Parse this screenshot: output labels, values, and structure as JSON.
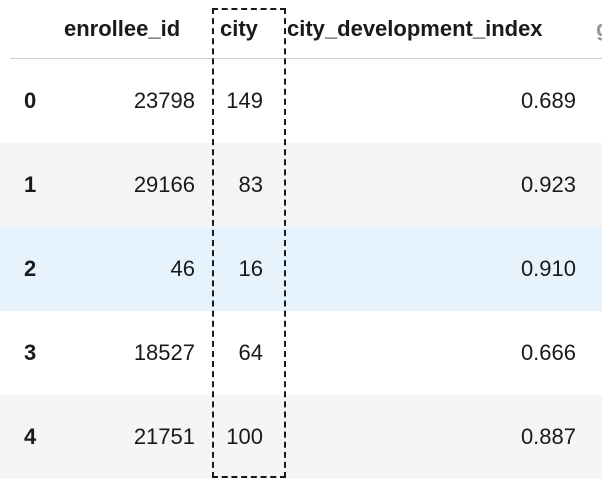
{
  "table": {
    "columns": {
      "enrollee_id": "enrollee_id",
      "city": "city",
      "cdi": "city_development_index",
      "next": "g"
    },
    "rows": [
      {
        "index": "0",
        "enrollee_id": "23798",
        "city": "149",
        "cdi": "0.689"
      },
      {
        "index": "1",
        "enrollee_id": "29166",
        "city": "83",
        "cdi": "0.923"
      },
      {
        "index": "2",
        "enrollee_id": "46",
        "city": "16",
        "cdi": "0.910"
      },
      {
        "index": "3",
        "enrollee_id": "18527",
        "city": "64",
        "cdi": "0.666"
      },
      {
        "index": "4",
        "enrollee_id": "21751",
        "city": "100",
        "cdi": "0.887"
      }
    ]
  },
  "colors": {
    "striped_row": "#f5f5f5",
    "hovered_row": "#e6f3fd",
    "highlight_border": "#1a1a1a"
  }
}
